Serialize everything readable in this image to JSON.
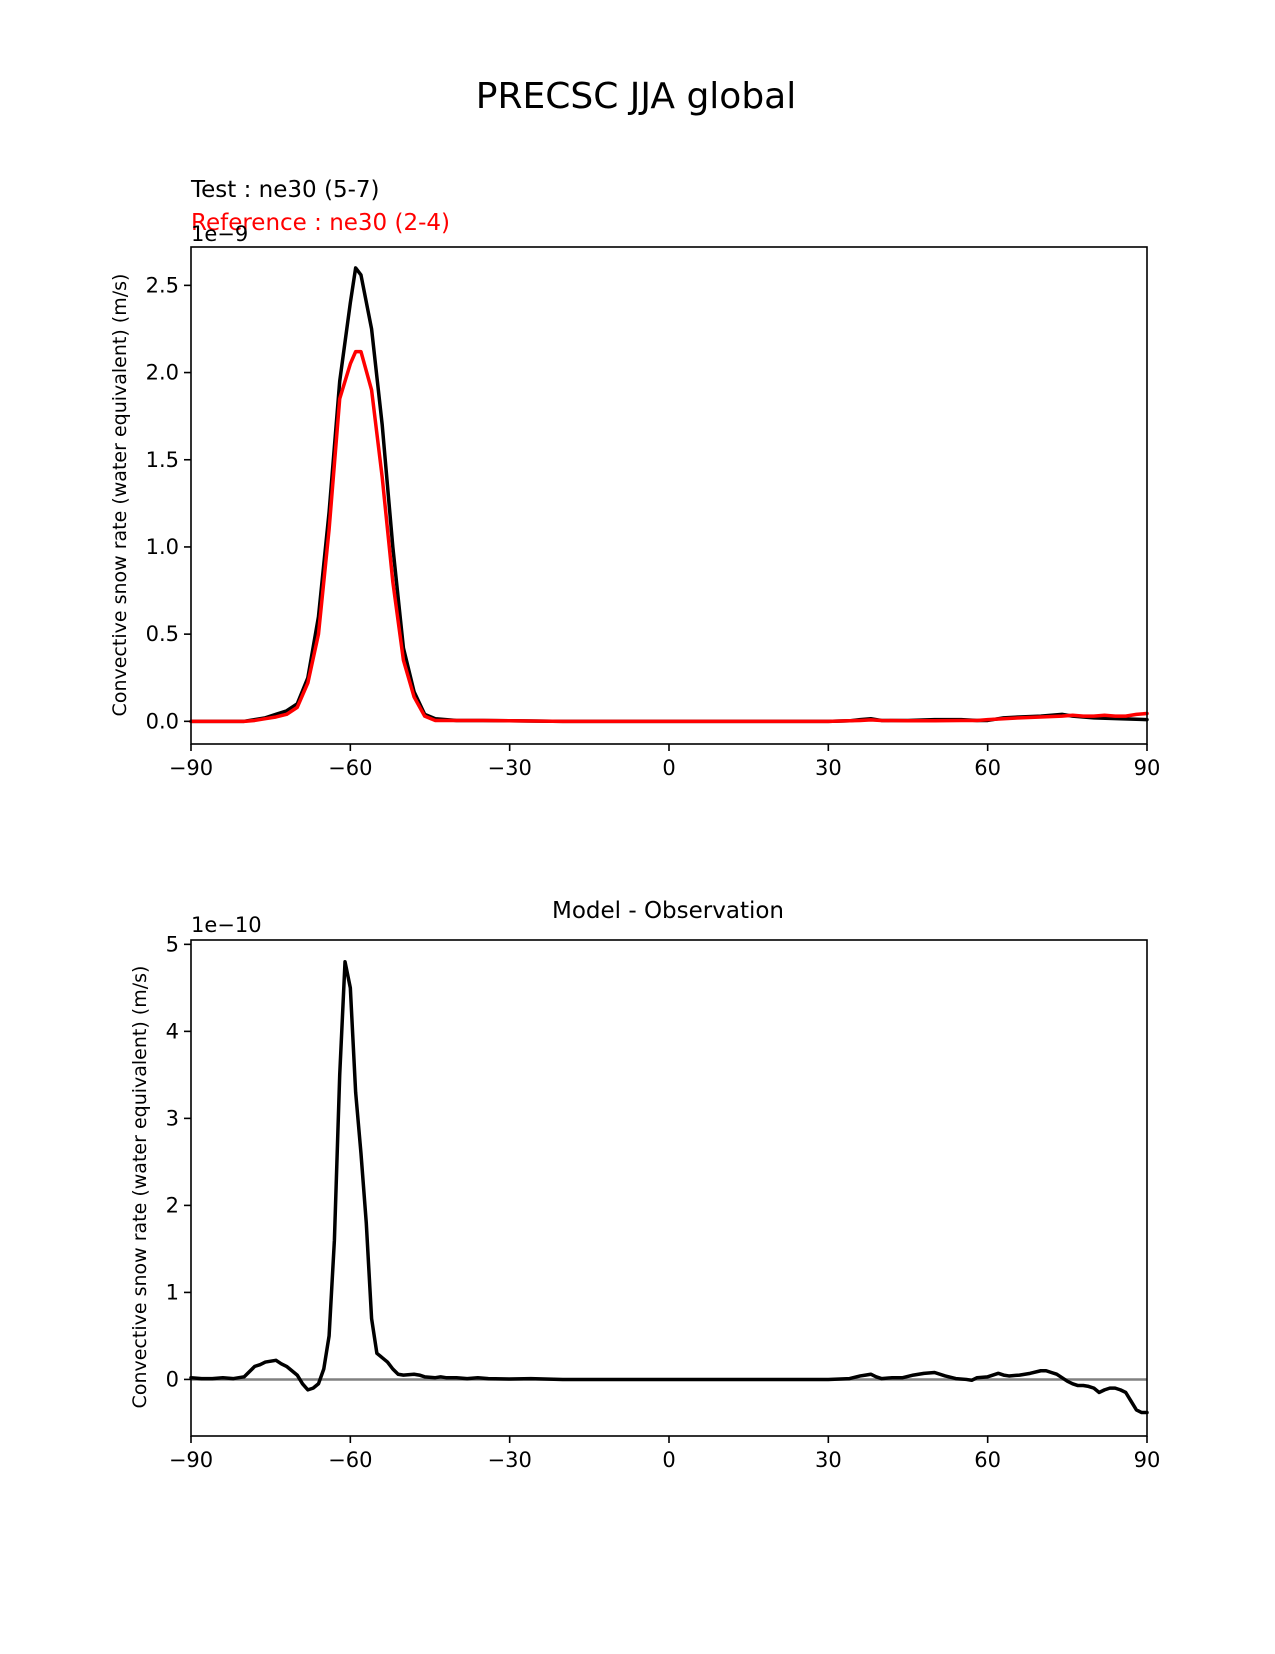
{
  "figure": {
    "title": "PRECSC JJA global"
  },
  "chart_data": [
    {
      "type": "line",
      "legend_text": [
        {
          "text": "Test : ne30 (5-7)",
          "color": "#000000"
        },
        {
          "text": "Reference : ne30 (2-4)",
          "color": "#ff0000"
        }
      ],
      "ylabel": "Convective snow rate (water equivalent) (m/s)",
      "offset_text": "1e−9",
      "xlim": [
        -90,
        90
      ],
      "ylim": [
        -0.13,
        2.72
      ],
      "xticks": [
        -90,
        -60,
        -30,
        0,
        30,
        60,
        90
      ],
      "xtick_labels": [
        "−90",
        "−60",
        "−30",
        "0",
        "30",
        "60",
        "90"
      ],
      "yticks": [
        0.0,
        0.5,
        1.0,
        1.5,
        2.0,
        2.5
      ],
      "ytick_labels": [
        "0.0",
        "0.5",
        "1.0",
        "1.5",
        "2.0",
        "2.5"
      ],
      "grid": false,
      "series": [
        {
          "name": "Test : ne30 (5-7)",
          "color": "#000000",
          "x": [
            -90,
            -85,
            -80,
            -78,
            -76,
            -74,
            -72,
            -70,
            -68,
            -66,
            -64,
            -62,
            -60,
            -59,
            -58,
            -56,
            -54,
            -52,
            -50,
            -48,
            -46,
            -44,
            -42,
            -40,
            -35,
            -30,
            -20,
            -10,
            0,
            10,
            20,
            30,
            34,
            36,
            38,
            40,
            45,
            50,
            55,
            58,
            60,
            63,
            66,
            70,
            74,
            76,
            78,
            80,
            85,
            90
          ],
          "y": [
            0.0,
            0.0,
            0.0,
            0.01,
            0.02,
            0.04,
            0.06,
            0.1,
            0.25,
            0.6,
            1.2,
            1.95,
            2.4,
            2.6,
            2.56,
            2.25,
            1.7,
            1.0,
            0.42,
            0.17,
            0.04,
            0.015,
            0.01,
            0.005,
            0.005,
            0.003,
            0.0,
            0.0,
            0.0,
            0.0,
            0.0,
            0.0,
            0.003,
            0.01,
            0.015,
            0.005,
            0.005,
            0.01,
            0.01,
            0.005,
            0.005,
            0.02,
            0.025,
            0.03,
            0.04,
            0.03,
            0.025,
            0.02,
            0.015,
            0.01
          ]
        },
        {
          "name": "Reference : ne30 (2-4)",
          "color": "#ff0000",
          "x": [
            -90,
            -85,
            -80,
            -78,
            -76,
            -74,
            -72,
            -70,
            -68,
            -66,
            -64,
            -62,
            -60,
            -59,
            -58,
            -56,
            -54,
            -52,
            -50,
            -48,
            -46,
            -44,
            -42,
            -40,
            -35,
            -30,
            -20,
            -10,
            0,
            10,
            20,
            30,
            34,
            36,
            38,
            40,
            45,
            50,
            55,
            58,
            60,
            63,
            66,
            70,
            74,
            76,
            78,
            80,
            82,
            84,
            86,
            88,
            90
          ],
          "y": [
            0.0,
            0.0,
            0.0,
            0.005,
            0.015,
            0.025,
            0.04,
            0.08,
            0.22,
            0.5,
            1.1,
            1.85,
            2.05,
            2.12,
            2.12,
            1.9,
            1.4,
            0.8,
            0.35,
            0.14,
            0.03,
            0.005,
            0.005,
            0.005,
            0.005,
            0.003,
            0.0,
            0.0,
            0.0,
            0.0,
            0.0,
            0.0,
            0.003,
            0.005,
            0.008,
            0.005,
            0.003,
            0.003,
            0.005,
            0.005,
            0.01,
            0.015,
            0.02,
            0.025,
            0.03,
            0.035,
            0.03,
            0.03,
            0.035,
            0.03,
            0.03,
            0.04,
            0.045
          ]
        }
      ]
    },
    {
      "type": "line",
      "title": "Model - Observation",
      "ylabel": "Convective snow rate (water equivalent) (m/s)",
      "offset_text": "1e−10",
      "xlim": [
        -90,
        90
      ],
      "ylim": [
        -0.65,
        5.05
      ],
      "xticks": [
        -90,
        -60,
        -30,
        0,
        30,
        60,
        90
      ],
      "xtick_labels": [
        "−90",
        "−60",
        "−30",
        "0",
        "30",
        "60",
        "90"
      ],
      "yticks": [
        0,
        1,
        2,
        3,
        4,
        5
      ],
      "ytick_labels": [
        "0",
        "1",
        "2",
        "3",
        "4",
        "5"
      ],
      "grid": false,
      "zero_line_color": "#808080",
      "series": [
        {
          "color": "#000000",
          "x": [
            -90,
            -88,
            -86,
            -84,
            -82,
            -80,
            -78,
            -77,
            -76,
            -74,
            -73,
            -72,
            -71,
            -70,
            -69,
            -68,
            -67,
            -66,
            -65,
            -64,
            -63,
            -62,
            -61,
            -60,
            -59,
            -58,
            -57,
            -56,
            -55,
            -54,
            -53,
            -52,
            -51,
            -50,
            -48,
            -47,
            -46,
            -44,
            -43,
            -42,
            -40,
            -38,
            -36,
            -34,
            -30,
            -26,
            -20,
            -10,
            0,
            10,
            20,
            30,
            34,
            36,
            37,
            38,
            39,
            40,
            42,
            44,
            46,
            48,
            50,
            52,
            54,
            56,
            57,
            58,
            60,
            62,
            63,
            64,
            66,
            68,
            70,
            71,
            72,
            73,
            74,
            75,
            76,
            77,
            78,
            79,
            80,
            81,
            82,
            83,
            84,
            85,
            86,
            87,
            88,
            89,
            90
          ],
          "y": [
            0.02,
            0.01,
            0.01,
            0.02,
            0.01,
            0.03,
            0.15,
            0.17,
            0.2,
            0.22,
            0.18,
            0.15,
            0.1,
            0.05,
            -0.05,
            -0.12,
            -0.1,
            -0.05,
            0.12,
            0.5,
            1.6,
            3.5,
            4.8,
            4.5,
            3.3,
            2.6,
            1.8,
            0.7,
            0.3,
            0.25,
            0.2,
            0.12,
            0.06,
            0.05,
            0.06,
            0.05,
            0.03,
            0.02,
            0.03,
            0.02,
            0.02,
            0.01,
            0.02,
            0.01,
            0.005,
            0.01,
            0.0,
            0.0,
            0.0,
            0.0,
            0.0,
            0.0,
            0.01,
            0.04,
            0.05,
            0.06,
            0.03,
            0.01,
            0.02,
            0.02,
            0.05,
            0.07,
            0.08,
            0.04,
            0.01,
            0.0,
            -0.01,
            0.02,
            0.03,
            0.07,
            0.05,
            0.04,
            0.05,
            0.07,
            0.1,
            0.1,
            0.08,
            0.06,
            0.02,
            -0.02,
            -0.05,
            -0.07,
            -0.07,
            -0.08,
            -0.1,
            -0.15,
            -0.12,
            -0.1,
            -0.1,
            -0.12,
            -0.15,
            -0.25,
            -0.35,
            -0.38,
            -0.38
          ]
        }
      ]
    }
  ]
}
